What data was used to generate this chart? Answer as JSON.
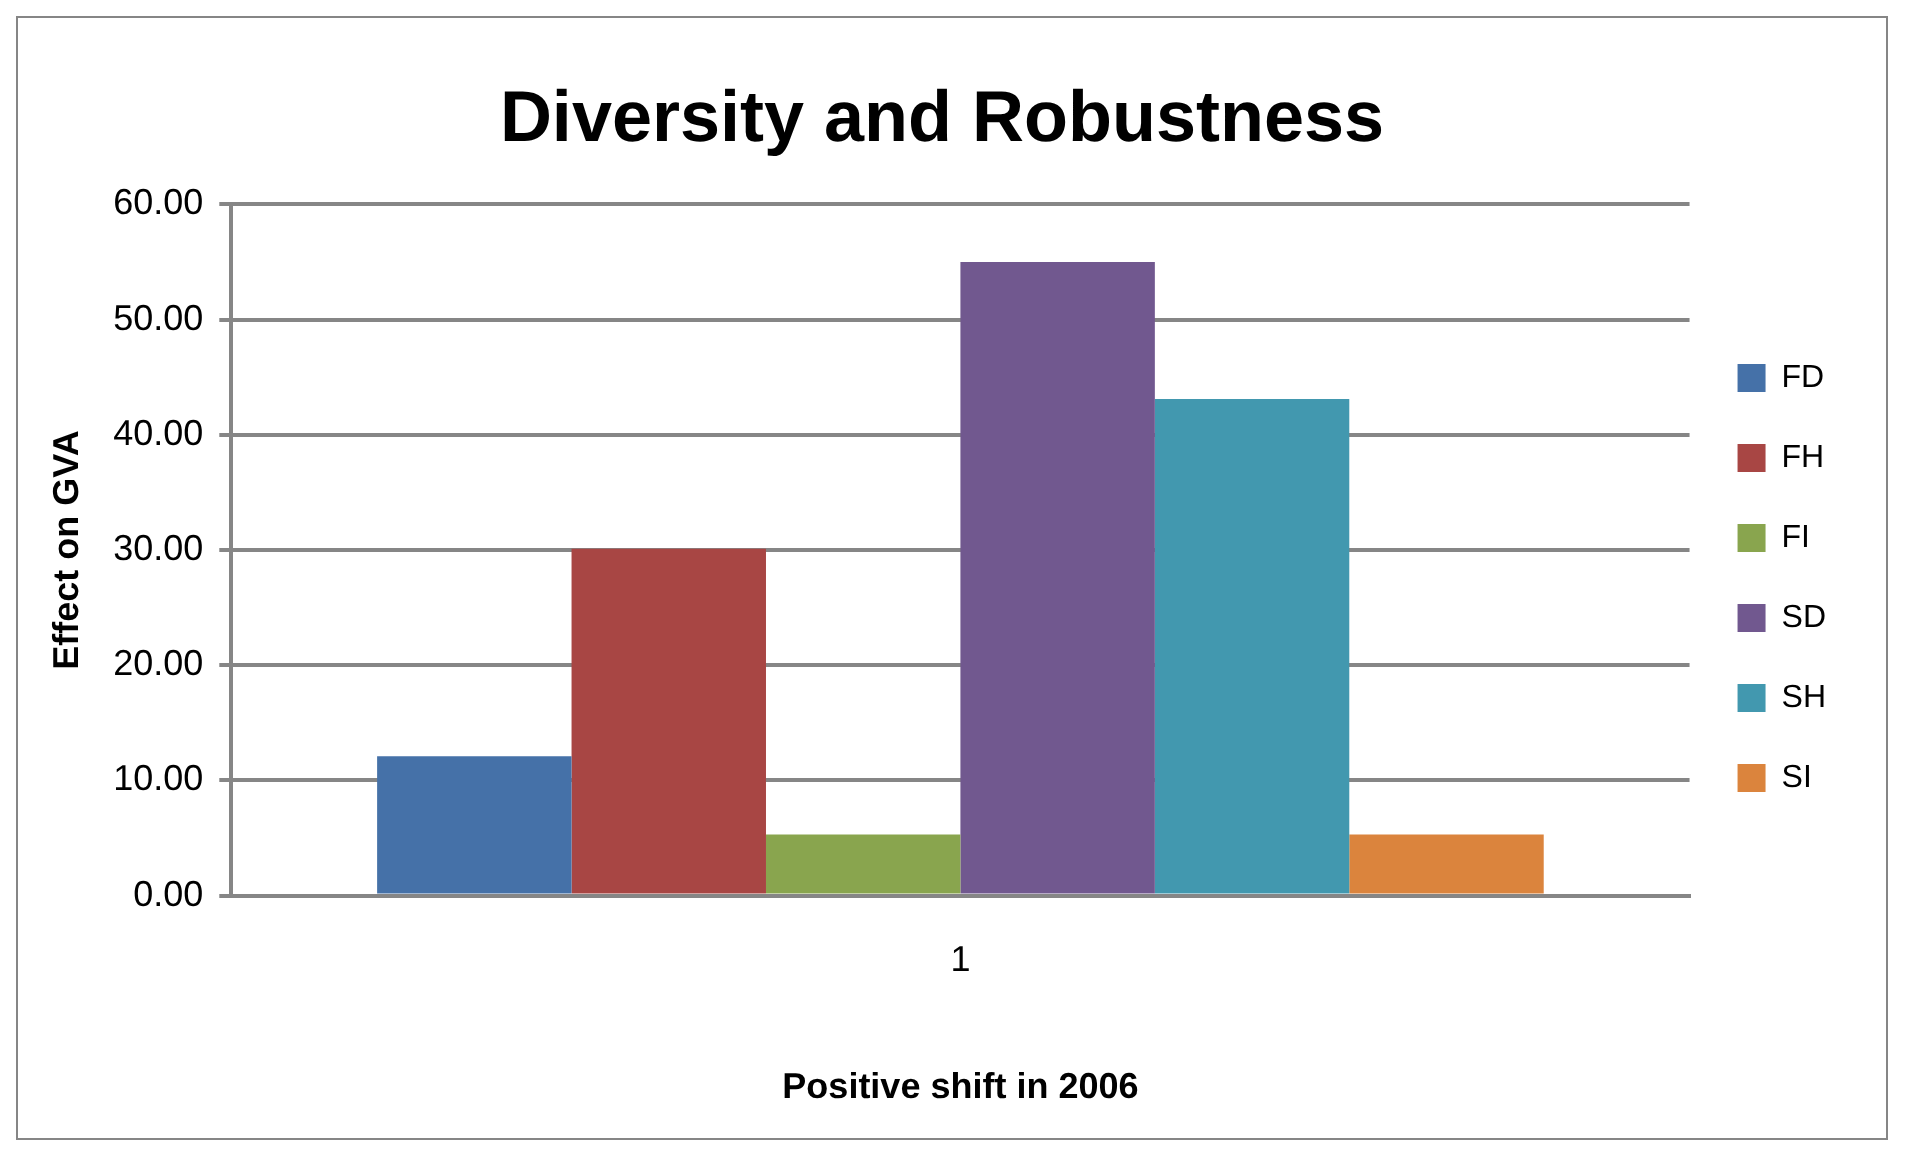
{
  "chart_data": {
    "type": "bar",
    "title": "Diversity and Robustness",
    "xlabel": "Positive shift in 2006",
    "ylabel": "Effect on GVA",
    "categories": [
      "1"
    ],
    "series": [
      {
        "name": "FD",
        "color": "#4571a8",
        "values": [
          12.1
        ]
      },
      {
        "name": "FH",
        "color": "#a84644",
        "values": [
          30.1
        ]
      },
      {
        "name": "FI",
        "color": "#89a54e",
        "values": [
          5.3
        ]
      },
      {
        "name": "SD",
        "color": "#71588f",
        "values": [
          55.0
        ]
      },
      {
        "name": "SH",
        "color": "#4298af",
        "values": [
          43.1
        ]
      },
      {
        "name": "SI",
        "color": "#db843d",
        "values": [
          5.3
        ]
      }
    ],
    "ylim": [
      0,
      60
    ],
    "yticks": [
      {
        "value": 0,
        "label": "0.00"
      },
      {
        "value": 10,
        "label": "10.00"
      },
      {
        "value": 20,
        "label": "20.00"
      },
      {
        "value": 30,
        "label": "30.00"
      },
      {
        "value": 40,
        "label": "40.00"
      },
      {
        "value": 50,
        "label": "50.00"
      },
      {
        "value": 60,
        "label": "60.00"
      }
    ],
    "grid": "y",
    "legend": "right"
  }
}
